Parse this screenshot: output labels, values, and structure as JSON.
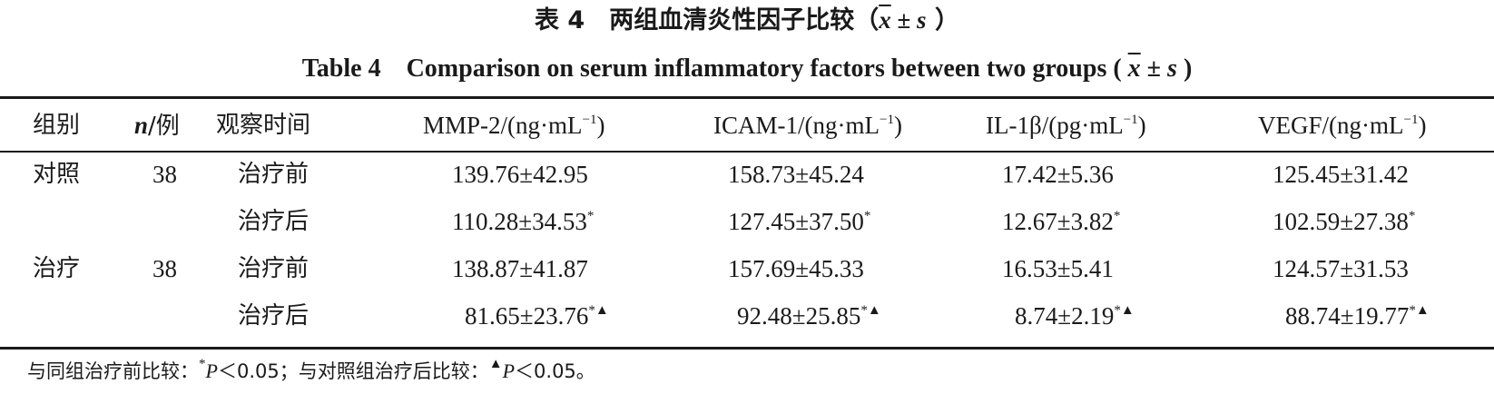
{
  "title_cn": {
    "prefix": "表 4　两组血清炎性因子比较（",
    "xbar": "x",
    "pm": " ± ",
    "s": "s",
    "suffix": " ）"
  },
  "title_en": {
    "prefix": "Table 4　Comparison on serum inflammatory factors between two groups (",
    "xbar": "x",
    "pm": " ± ",
    "s": "s",
    "suffix": " )"
  },
  "headers": {
    "group": "组别",
    "n_italic": "n",
    "n_unit": "/例",
    "time": "观察时间",
    "mmp2": "MMP-2/(ng·mL",
    "icam1": "ICAM-1/(ng·mL",
    "il1b": "IL-1β/(pg·mL",
    "vegf": "VEGF/(ng·mL",
    "exp": "−1",
    "close": ")"
  },
  "rows": [
    {
      "group": "对照",
      "n": "38",
      "time": "治疗前",
      "mmp2": "139.76±42.95",
      "mmp2_mark": "",
      "icam1": "158.73±45.24",
      "icam1_mark": "",
      "il1b": "17.42±5.36",
      "il1b_mark": "",
      "vegf": "125.45±31.42",
      "vegf_mark": ""
    },
    {
      "group": "",
      "n": "",
      "time": "治疗后",
      "mmp2": "110.28±34.53",
      "mmp2_mark": "*",
      "icam1": "127.45±37.50",
      "icam1_mark": "*",
      "il1b": "12.67±3.82",
      "il1b_mark": "*",
      "vegf": "102.59±27.38",
      "vegf_mark": "*"
    },
    {
      "group": "治疗",
      "n": "38",
      "time": "治疗前",
      "mmp2": "138.87±41.87",
      "mmp2_mark": "",
      "icam1": "157.69±45.33",
      "icam1_mark": "",
      "il1b": "16.53±5.41",
      "il1b_mark": "",
      "vegf": "124.57±31.53",
      "vegf_mark": ""
    },
    {
      "group": "",
      "n": "",
      "time": "治疗后",
      "mmp2": "81.65±23.76",
      "mmp2_mark": "*▲",
      "icam1": "92.48±25.85",
      "icam1_mark": "*▲",
      "il1b": "8.74±2.19",
      "il1b_mark": "*▲",
      "vegf": "88.74±19.77",
      "vegf_mark": "*▲"
    }
  ],
  "footnote": {
    "part1": "与同组治疗前比较：",
    "star": "*",
    "p1": "P",
    "val1": "＜0.05；与对照组治疗后比较：",
    "tri": "▲",
    "p2": "P",
    "val2": "＜0.05。"
  }
}
